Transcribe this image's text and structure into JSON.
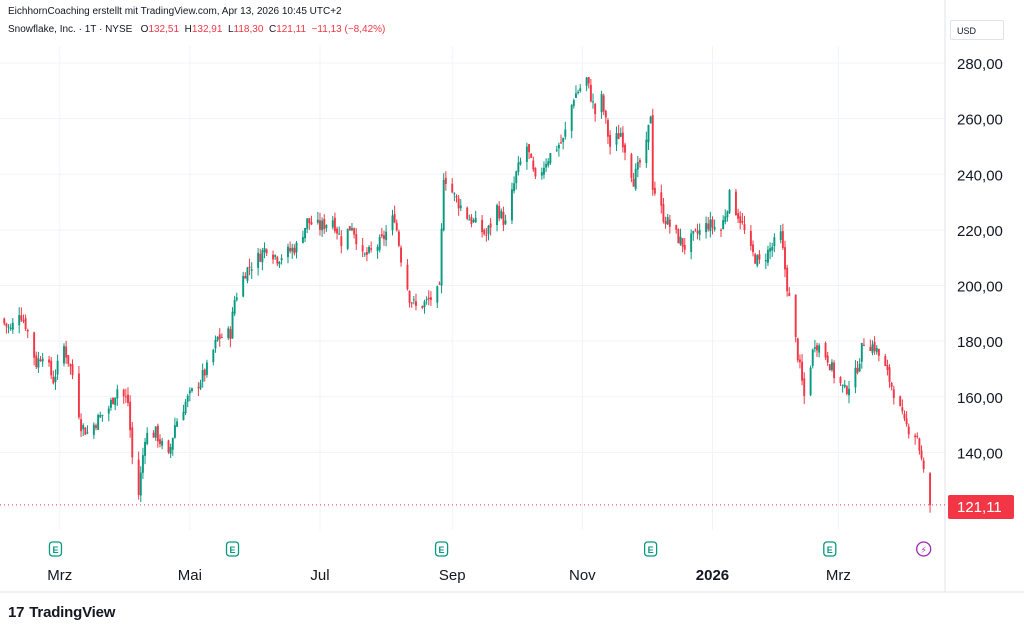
{
  "header": {
    "attribution": "EichhornCoaching erstellt mit TradingView.com, Apr 13, 2026 10:45 UTC+2",
    "symbol": "Snowflake, Inc. · 1T · NYSE",
    "o_label": "O",
    "o_value": "132,51",
    "h_label": "H",
    "h_value": "132,91",
    "l_label": "L",
    "l_value": "118,30",
    "c_label": "C",
    "c_value": "121,11",
    "change": "−11,13 (−8,42%)"
  },
  "currency": "USD",
  "logo": {
    "mark": "17",
    "text": "TradingView"
  },
  "colors": {
    "up": "#089981",
    "down": "#f23645",
    "grid": "#f0f3fa",
    "axis_text": "#131722",
    "event_earnings": "#089981",
    "event_split": "#9c27b0"
  },
  "chart_data": {
    "type": "candlestick",
    "ylim": [
      112,
      290
    ],
    "y_ticks": [
      140,
      160,
      180,
      200,
      220,
      240,
      260,
      280
    ],
    "y_tick_labels": [
      "140,00",
      "160,00",
      "180,00",
      "200,00",
      "220,00",
      "240,00",
      "260,00",
      "280,00"
    ],
    "x_labels": [
      {
        "label": "Mrz",
        "date": "2025-03-01"
      },
      {
        "label": "Mai",
        "date": "2025-05-01"
      },
      {
        "label": "Jul",
        "date": "2025-07-01"
      },
      {
        "label": "Sep",
        "date": "2025-09-01"
      },
      {
        "label": "Nov",
        "date": "2025-11-01"
      },
      {
        "label": "2026",
        "date": "2026-01-01"
      },
      {
        "label": "Mrz",
        "date": "2026-03-01"
      }
    ],
    "last_price": 121.11,
    "last_price_label": "121,11",
    "events": [
      {
        "type": "earnings",
        "label": "E",
        "date": "2025-02-27"
      },
      {
        "type": "earnings",
        "label": "E",
        "date": "2025-05-21"
      },
      {
        "type": "earnings",
        "label": "E",
        "date": "2025-08-27"
      },
      {
        "type": "earnings",
        "label": "E",
        "date": "2025-12-03"
      },
      {
        "type": "earnings",
        "label": "E",
        "date": "2026-02-25"
      },
      {
        "type": "dividend",
        "label": "⚡",
        "date": "2026-04-10"
      }
    ],
    "waypoints": [
      [
        "2025-02-01",
        188
      ],
      [
        "2025-02-06",
        184
      ],
      [
        "2025-02-10",
        191
      ],
      [
        "2025-02-13",
        186
      ],
      [
        "2025-02-18",
        172
      ],
      [
        "2025-02-21",
        176
      ],
      [
        "2025-02-26",
        166
      ],
      [
        "2025-03-03",
        178
      ],
      [
        "2025-03-07",
        168
      ],
      [
        "2025-03-11",
        150
      ],
      [
        "2025-03-14",
        147
      ],
      [
        "2025-03-19",
        152
      ],
      [
        "2025-03-24",
        156
      ],
      [
        "2025-03-28",
        163
      ],
      [
        "2025-04-02",
        158
      ],
      [
        "2025-04-04",
        138
      ],
      [
        "2025-04-07",
        125
      ],
      [
        "2025-04-10",
        146
      ],
      [
        "2025-04-15",
        147
      ],
      [
        "2025-04-21",
        138
      ],
      [
        "2025-04-24",
        150
      ],
      [
        "2025-04-29",
        158
      ],
      [
        "2025-05-05",
        165
      ],
      [
        "2025-05-09",
        170
      ],
      [
        "2025-05-14",
        181
      ],
      [
        "2025-05-20",
        183
      ],
      [
        "2025-05-22",
        195
      ],
      [
        "2025-05-27",
        205
      ],
      [
        "2025-06-02",
        210
      ],
      [
        "2025-06-06",
        214
      ],
      [
        "2025-06-11",
        210
      ],
      [
        "2025-06-16",
        212
      ],
      [
        "2025-06-20",
        214
      ],
      [
        "2025-06-25",
        223
      ],
      [
        "2025-07-01",
        221
      ],
      [
        "2025-07-07",
        224
      ],
      [
        "2025-07-11",
        216
      ],
      [
        "2025-07-16",
        222
      ],
      [
        "2025-07-21",
        210
      ],
      [
        "2025-07-25",
        212
      ],
      [
        "2025-07-30",
        216
      ],
      [
        "2025-08-05",
        225
      ],
      [
        "2025-08-08",
        210
      ],
      [
        "2025-08-12",
        196
      ],
      [
        "2025-08-15",
        192
      ],
      [
        "2025-08-20",
        194
      ],
      [
        "2025-08-26",
        198
      ],
      [
        "2025-08-28",
        240
      ],
      [
        "2025-09-02",
        232
      ],
      [
        "2025-09-08",
        225
      ],
      [
        "2025-09-12",
        222
      ],
      [
        "2025-09-17",
        218
      ],
      [
        "2025-09-22",
        228
      ],
      [
        "2025-09-26",
        222
      ],
      [
        "2025-10-01",
        240
      ],
      [
        "2025-10-06",
        250
      ],
      [
        "2025-10-10",
        237
      ],
      [
        "2025-10-15",
        245
      ],
      [
        "2025-10-20",
        250
      ],
      [
        "2025-10-23",
        252
      ],
      [
        "2025-10-28",
        268
      ],
      [
        "2025-11-03",
        274
      ],
      [
        "2025-11-07",
        262
      ],
      [
        "2025-11-10",
        267
      ],
      [
        "2025-11-14",
        250
      ],
      [
        "2025-11-19",
        255
      ],
      [
        "2025-11-25",
        238
      ],
      [
        "2025-12-01",
        250
      ],
      [
        "2025-12-03",
        262
      ],
      [
        "2025-12-04",
        236
      ],
      [
        "2025-12-09",
        225
      ],
      [
        "2025-12-15",
        218
      ],
      [
        "2025-12-19",
        214
      ],
      [
        "2025-12-24",
        218
      ],
      [
        "2025-12-30",
        222
      ],
      [
        "2026-01-05",
        220
      ],
      [
        "2026-01-09",
        232
      ],
      [
        "2026-01-14",
        224
      ],
      [
        "2026-01-19",
        212
      ],
      [
        "2026-01-23",
        208
      ],
      [
        "2026-01-28",
        213
      ],
      [
        "2026-02-02",
        218
      ],
      [
        "2026-02-05",
        200
      ],
      [
        "2026-02-10",
        175
      ],
      [
        "2026-02-13",
        160
      ],
      [
        "2026-02-18",
        180
      ],
      [
        "2026-02-24",
        174
      ],
      [
        "2026-02-27",
        168
      ],
      [
        "2026-03-04",
        162
      ],
      [
        "2026-03-09",
        168
      ],
      [
        "2026-03-13",
        180
      ],
      [
        "2026-03-18",
        178
      ],
      [
        "2026-03-23",
        170
      ],
      [
        "2026-03-27",
        162
      ],
      [
        "2026-04-01",
        150
      ],
      [
        "2026-04-07",
        146
      ],
      [
        "2026-04-10",
        132.5
      ],
      [
        "2026-04-13",
        121.11
      ]
    ]
  }
}
